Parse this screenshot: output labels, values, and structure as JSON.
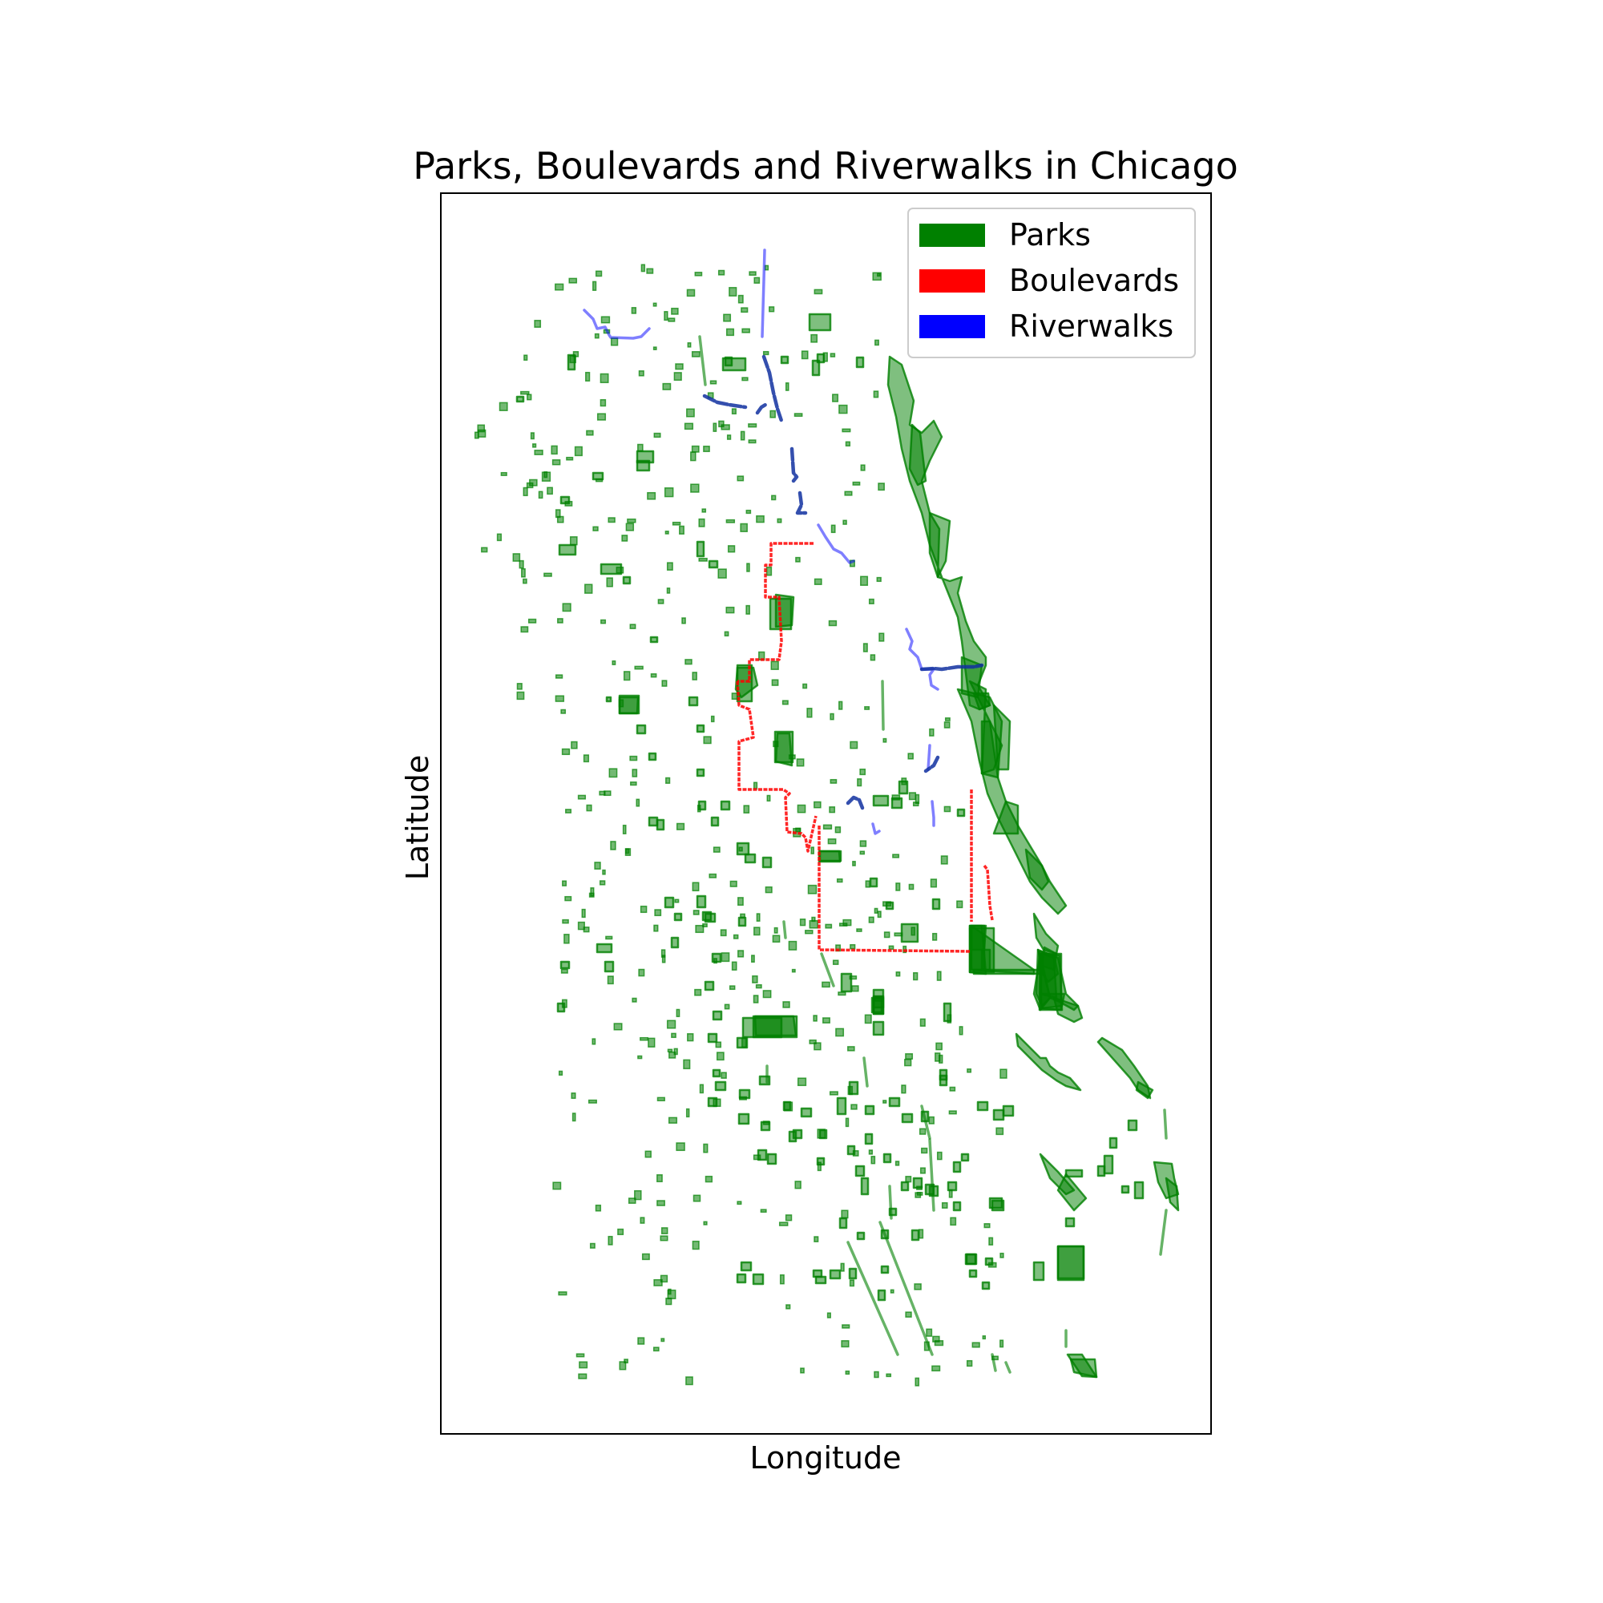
{
  "chart_data": {
    "type": "map",
    "title": "Parks, Boulevards and Riverwalks in Chicago",
    "xlabel": "Longitude",
    "ylabel": "Latitude",
    "ticks_shown": false,
    "legend": {
      "placement": "top-right",
      "entries": [
        {
          "label": "Parks",
          "color": "#008000"
        },
        {
          "label": "Boulevards",
          "color": "#ff0000"
        },
        {
          "label": "Riverwalks",
          "color": "#0000ff"
        }
      ]
    },
    "layers": [
      {
        "name": "Parks",
        "color": "#008000",
        "geometry": "polygons"
      },
      {
        "name": "Boulevards",
        "color": "#ff0000",
        "geometry": "lines"
      },
      {
        "name": "Riverwalks",
        "color": "#0000ff",
        "geometry": "lines"
      }
    ]
  }
}
